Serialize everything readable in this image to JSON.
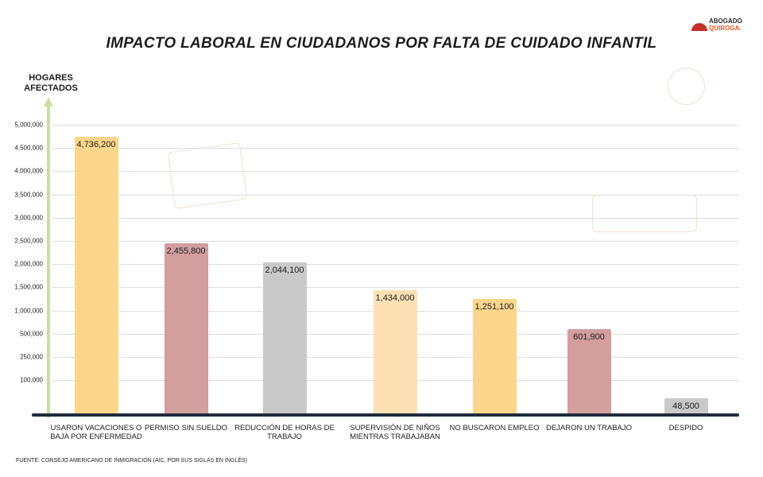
{
  "logo": {
    "line1": "ABOGADO",
    "line2": "QUIROGA."
  },
  "chart_data": {
    "type": "bar",
    "title": "IMPACTO LABORAL EN CIUDADANOS POR FALTA DE CUIDADO INFANTIL",
    "ylabel": "HOGARES AFECTADOS",
    "xlabel": "",
    "yticks": [
      "5,000,000",
      "4,500,000",
      "4,000,000",
      "3,500,000",
      "3,000,000",
      "2,500,000",
      "2,000,000",
      "1,500,000",
      "1,000,000",
      "500,000",
      "250,000",
      "100,000"
    ],
    "ytick_values": [
      5000000,
      4500000,
      4000000,
      3500000,
      3000000,
      2500000,
      2000000,
      1500000,
      1000000,
      500000,
      250000,
      100000
    ],
    "grid": true,
    "categories": [
      "USARON VACACIONES O BAJA POR ENFERMEDAD",
      "PERMISO SIN SUELDO",
      "REDUCCIÓN DE HORAS DE TRABAJO",
      "SUPERVISIÓN DE NIÑOS MIENTRAS TRABAJABAN",
      "NO BUSCARON EMPLEO",
      "DEJARON UN TRABAJO",
      "DESPIDO"
    ],
    "values": [
      4736200,
      2455800,
      2044100,
      1434000,
      1251100,
      601900,
      48500
    ],
    "value_labels": [
      "4,736,200",
      "2,455,800",
      "2,044,100",
      "1,434,000",
      "1,251,100",
      "601,900",
      "48,500"
    ],
    "colors": [
      "#fdd68c",
      "#d39e9e",
      "#c9c9c9",
      "#fde0b4",
      "#fdd68c",
      "#d39e9e",
      "#c9c9c9"
    ]
  },
  "source": "FUENTE: CONSEJO AMERICANO DE INMIGRACIÓN (AIC, POR SUS SIGLAS EN INGLÉS)"
}
